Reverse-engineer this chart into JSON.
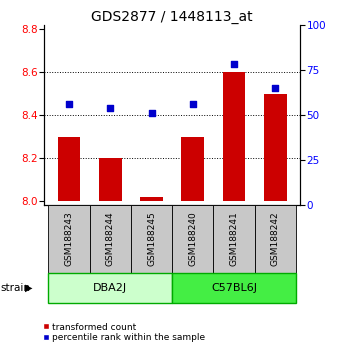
{
  "title": "GDS2877 / 1448113_at",
  "samples": [
    "GSM188243",
    "GSM188244",
    "GSM188245",
    "GSM188240",
    "GSM188241",
    "GSM188242"
  ],
  "transformed_count": [
    8.3,
    8.2,
    8.02,
    8.3,
    8.6,
    8.5
  ],
  "percentile_rank": [
    56,
    54,
    51,
    56,
    78,
    65
  ],
  "ylim_left": [
    7.98,
    8.82
  ],
  "ylim_right": [
    0,
    100
  ],
  "bar_color": "#cc0000",
  "dot_color": "#0000cc",
  "bar_bottom": 8.0,
  "bar_width": 0.55,
  "dot_size": 22,
  "yticks_left": [
    8.0,
    8.2,
    8.4,
    8.6,
    8.8
  ],
  "yticks_right": [
    0,
    25,
    50,
    75,
    100
  ],
  "title_fontsize": 10,
  "tick_fontsize": 7.5,
  "sample_fontsize": 6.5,
  "group_fontsize": 8,
  "legend_labels": [
    "transformed count",
    "percentile rank within the sample"
  ],
  "legend_colors": [
    "#cc0000",
    "#0000cc"
  ],
  "strain_label": "strain",
  "strain_groups": [
    "DBA2J",
    "C57BL6J"
  ],
  "group_light_color": "#ccffcc",
  "group_dark_color": "#44ee44",
  "sample_box_color": "#c8c8c8"
}
